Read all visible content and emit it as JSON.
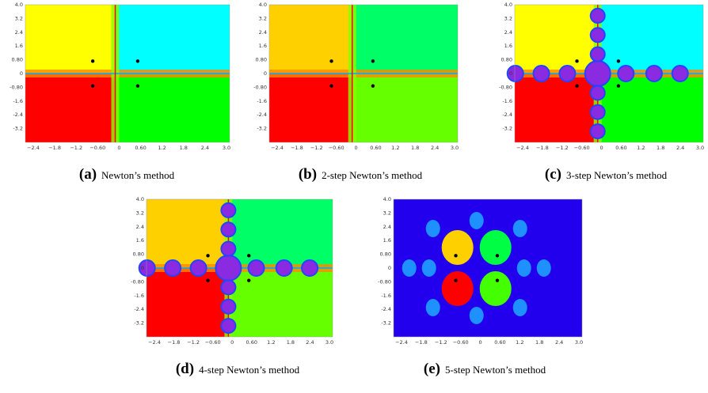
{
  "panels": [
    {
      "label": "(a)",
      "caption": "Newton’s method",
      "yticks": [
        "4.0",
        "3.2",
        "2.4",
        "1.6",
        "0.80",
        "0",
        "-0.80",
        "-1.6",
        "-2.4",
        "-3.2"
      ],
      "xticks": [
        "−2.4",
        "−1.8",
        "−1.2",
        "−0.60",
        "0",
        "0.60",
        "1.2",
        "1.8",
        "2.4",
        "3.0"
      ]
    },
    {
      "label": "(b)",
      "caption": "2-step Newton’s method",
      "yticks": [
        "4.0",
        "3.2",
        "2.4",
        "1.6",
        "0.80",
        "0",
        "-0.80",
        "-1.6",
        "-2.4",
        "-3.2"
      ],
      "xticks": [
        "−2.4",
        "−1.8",
        "−1.2",
        "−0.60",
        "0",
        "0.60",
        "1.2",
        "1.8",
        "2.4",
        "3.0"
      ]
    },
    {
      "label": "(c)",
      "caption": "3-step Newton’s method",
      "yticks": [
        "4.0",
        "3.2",
        "2.4",
        "1.6",
        "0.80",
        "0",
        "-0.80",
        "-1.6",
        "-2.4",
        "-3.2"
      ],
      "xticks": [
        "−2.4",
        "−1.8",
        "−1.2",
        "−0.60",
        "0",
        "0.60",
        "1.2",
        "1.8",
        "2.4",
        "3.0"
      ]
    },
    {
      "label": "(d)",
      "caption": "4-step Newton’s method",
      "yticks": [
        "4.0",
        "3.2",
        "2.4",
        "1.6",
        "0.80",
        "0",
        "-0.80",
        "-1.6",
        "-2.4",
        "-3.2"
      ],
      "xticks": [
        "−2.4",
        "−1.8",
        "−1.2",
        "−0.60",
        "0",
        "0.60",
        "1.2",
        "1.8",
        "2.4",
        "3.0"
      ]
    },
    {
      "label": "(e)",
      "caption": "5-step Newton’s method",
      "yticks": [
        "4.0",
        "3.2",
        "2.4",
        "1.6",
        "0.80",
        "0",
        "-0.80",
        "-1.6",
        "-2.4",
        "-3.2"
      ],
      "xticks": [
        "−2.4",
        "−1.8",
        "−1.2",
        "−0.60",
        "0",
        "0.60",
        "1.2",
        "1.8",
        "2.4",
        "3.0"
      ]
    }
  ]
}
